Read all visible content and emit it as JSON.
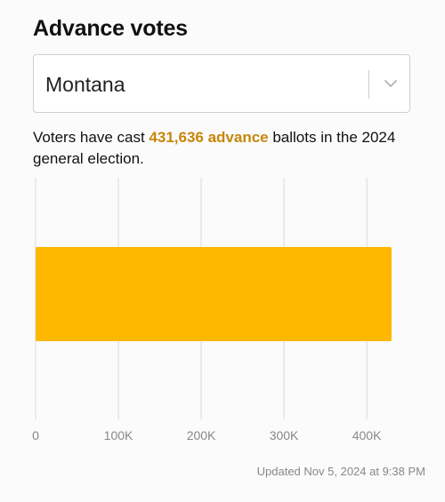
{
  "header": {
    "title": "Advance votes"
  },
  "state_select": {
    "selected": "Montana",
    "chevron_icon": "chevron-down-icon"
  },
  "summary": {
    "prefix": "Voters have cast ",
    "highlight": "431,636 advance",
    "suffix": " ballots in the 2024 general election."
  },
  "chart_data": {
    "type": "bar",
    "orientation": "horizontal",
    "categories": [
      "Montana"
    ],
    "values": [
      431636
    ],
    "xlim": [
      0,
      430000
    ],
    "ticks": [
      {
        "value": 0,
        "label": "0"
      },
      {
        "value": 100000,
        "label": "100K"
      },
      {
        "value": 200000,
        "label": "200K"
      },
      {
        "value": 300000,
        "label": "300K"
      },
      {
        "value": 400000,
        "label": "400K"
      }
    ],
    "grid": true,
    "colors": {
      "bar": "#ffb800",
      "highlight_text": "#c7860a",
      "grid": "#d9d9d9",
      "tick_label": "#888888"
    }
  },
  "footer": {
    "updated": "Updated Nov 5, 2024 at 9:38 PM"
  }
}
